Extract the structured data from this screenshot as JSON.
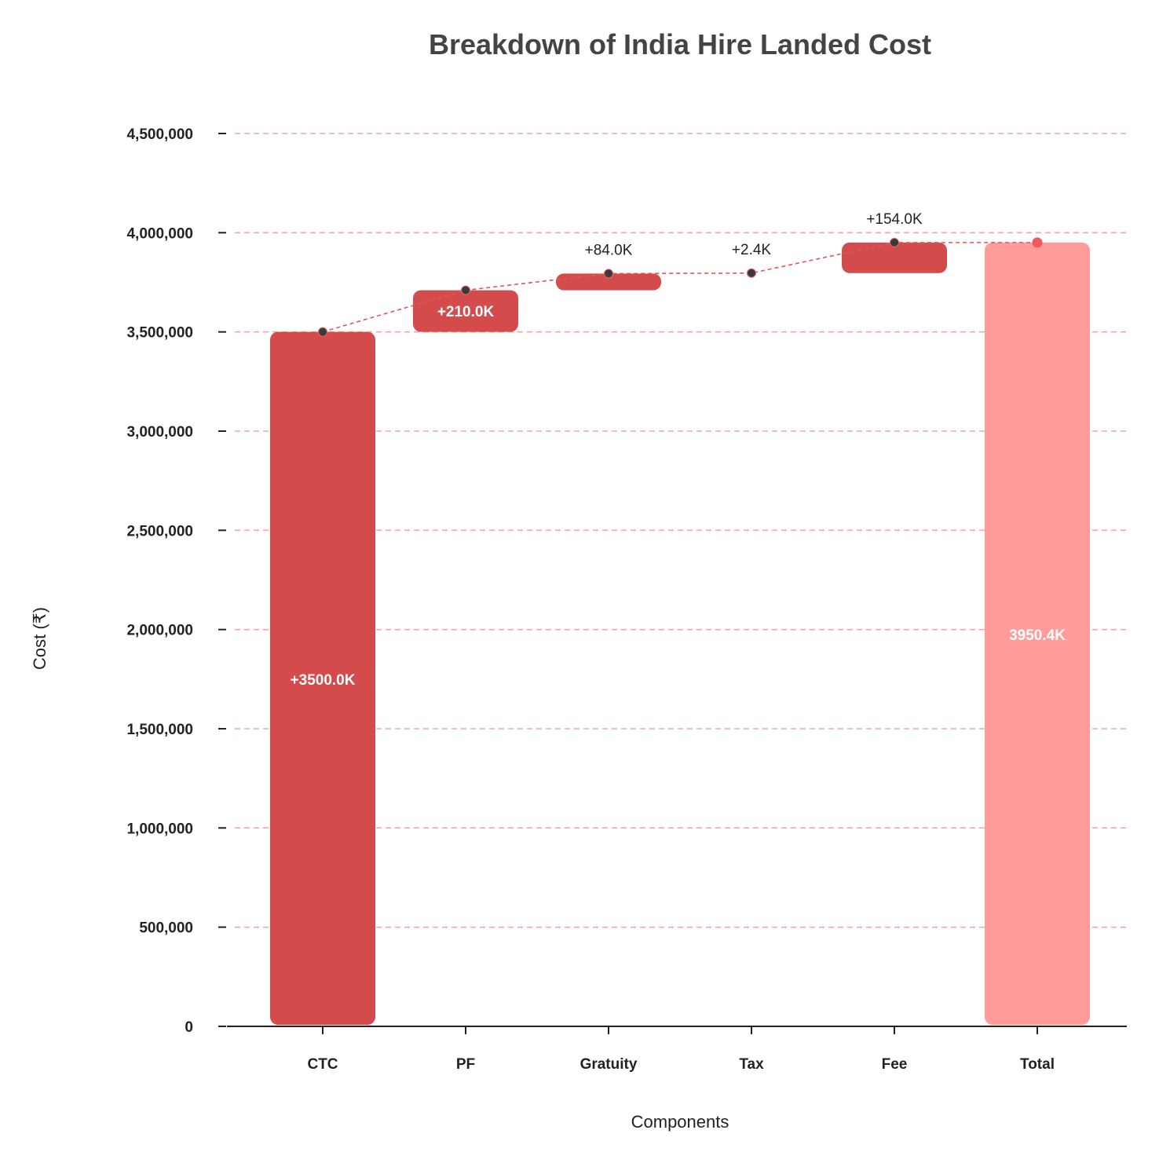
{
  "chart_data": {
    "type": "waterfall",
    "title": "Breakdown of India Hire Landed Cost",
    "xlabel": "Components",
    "ylabel": "Cost (₹)",
    "ylim": [
      0,
      4500000
    ],
    "yticks": [
      0,
      500000,
      1000000,
      1500000,
      2000000,
      2500000,
      3000000,
      3500000,
      4000000,
      4500000
    ],
    "ytick_labels": [
      "0",
      "500,000",
      "1,000,000",
      "1,500,000",
      "2,000,000",
      "2,500,000",
      "3,000,000",
      "3,500,000",
      "4,000,000",
      "4,500,000"
    ],
    "grid": true,
    "categories": [
      "CTC",
      "PF",
      "Gratuity",
      "Tax",
      "Fee",
      "Total"
    ],
    "values": [
      3500000,
      210000,
      84000,
      2400,
      154000,
      3950400
    ],
    "running_totals": [
      3500000,
      3710000,
      3794000,
      3796400,
      3950400,
      3950400
    ],
    "bar_labels": [
      "+3500.0K",
      "+210.0K",
      "+84.0K",
      "+2.4K",
      "+154.0K",
      "3950.4K"
    ],
    "is_total": [
      false,
      false,
      false,
      false,
      false,
      true
    ],
    "colors": {
      "increase": "#d44b4b",
      "total": "#ff9c9a",
      "grid": "#f3a5a5",
      "connector": "#e45555",
      "marker": "#3a3a3a",
      "total_marker": "#f05a5a",
      "axis": "#222222",
      "title": "#444444"
    }
  }
}
